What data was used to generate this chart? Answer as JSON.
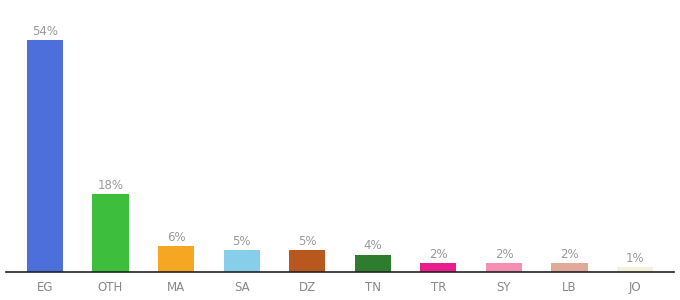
{
  "categories": [
    "EG",
    "OTH",
    "MA",
    "SA",
    "DZ",
    "TN",
    "TR",
    "SY",
    "LB",
    "JO"
  ],
  "values": [
    54,
    18,
    6,
    5,
    5,
    4,
    2,
    2,
    2,
    1
  ],
  "bar_colors": [
    "#4d6fdb",
    "#3dbf3d",
    "#f5a623",
    "#87ceeb",
    "#b8581e",
    "#2e7d2e",
    "#e91e8c",
    "#f48fb1",
    "#e0a898",
    "#f5f0d8"
  ],
  "labels": [
    "54%",
    "18%",
    "6%",
    "5%",
    "5%",
    "4%",
    "2%",
    "2%",
    "2%",
    "1%"
  ],
  "background_color": "#ffffff",
  "label_color": "#999999",
  "label_fontsize": 8.5,
  "tick_fontsize": 8.5,
  "tick_color": "#888888",
  "bar_width": 0.55,
  "ylim": [
    0,
    62
  ],
  "figsize": [
    6.8,
    3.0
  ],
  "dpi": 100
}
